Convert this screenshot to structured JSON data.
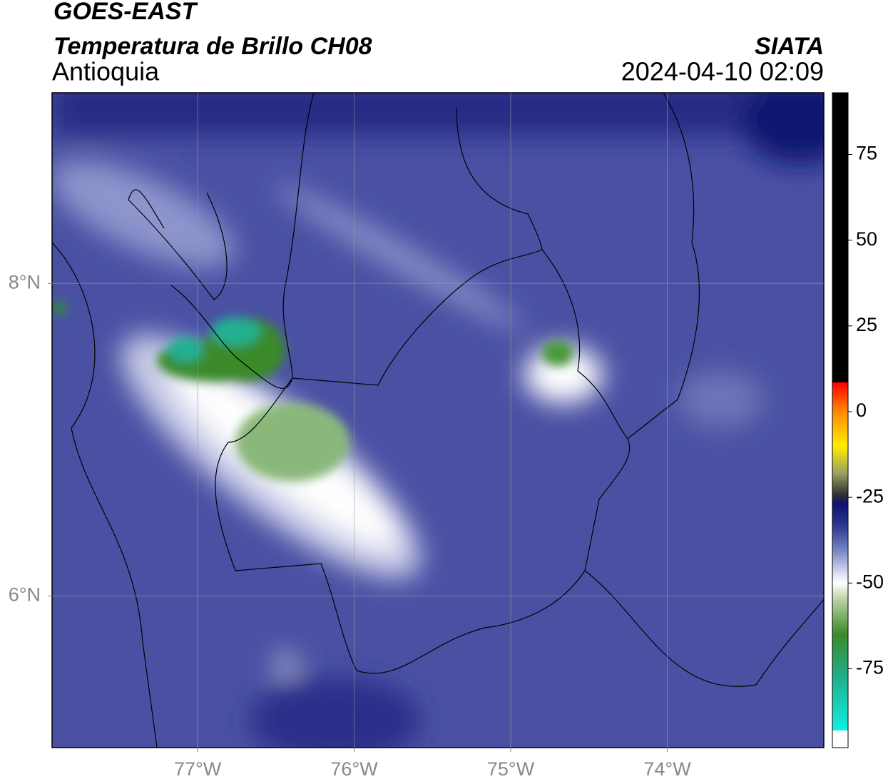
{
  "header": {
    "title": "GOES-EAST",
    "subtitle": "Temperatura de Brillo CH08",
    "region": "Antioquia",
    "agency": "SIATA",
    "timestamp": "2024-04-10 02:09"
  },
  "map": {
    "lon_range": [
      -77.93,
      -73.0
    ],
    "lat_range": [
      5.03,
      9.22
    ],
    "lon_ticks": [
      {
        "value": -77,
        "label": "77°W"
      },
      {
        "value": -76,
        "label": "76°W"
      },
      {
        "value": -75,
        "label": "75°W"
      },
      {
        "value": -74,
        "label": "74°W"
      }
    ],
    "lat_ticks": [
      {
        "value": 8,
        "label": "8°N"
      },
      {
        "value": 6,
        "label": "6°N"
      }
    ],
    "grid": true
  },
  "colorbar": {
    "range": [
      -98,
      93
    ],
    "ticks": [
      75,
      50,
      25,
      0,
      -25,
      -50,
      -75
    ],
    "stops": [
      {
        "value": 93,
        "color": "#000000"
      },
      {
        "value": 8.5,
        "color": "#000000"
      },
      {
        "value": 8.5,
        "color": "#ff0000"
      },
      {
        "value": 0,
        "color": "#ff8800"
      },
      {
        "value": -10,
        "color": "#ffee00"
      },
      {
        "value": -18,
        "color": "#9aa060"
      },
      {
        "value": -24,
        "color": "#333333"
      },
      {
        "value": -27,
        "color": "#101070"
      },
      {
        "value": -33,
        "color": "#2a3590"
      },
      {
        "value": -40,
        "color": "#7080c0"
      },
      {
        "value": -47,
        "color": "#d8dcf0"
      },
      {
        "value": -50,
        "color": "#ffffff"
      },
      {
        "value": -55,
        "color": "#b8d0a0"
      },
      {
        "value": -65,
        "color": "#3a8a2a"
      },
      {
        "value": -78,
        "color": "#20b090"
      },
      {
        "value": -93,
        "color": "#10f0e0"
      },
      {
        "value": -93,
        "color": "#ffffff"
      },
      {
        "value": -98,
        "color": "#ffffff"
      }
    ]
  }
}
